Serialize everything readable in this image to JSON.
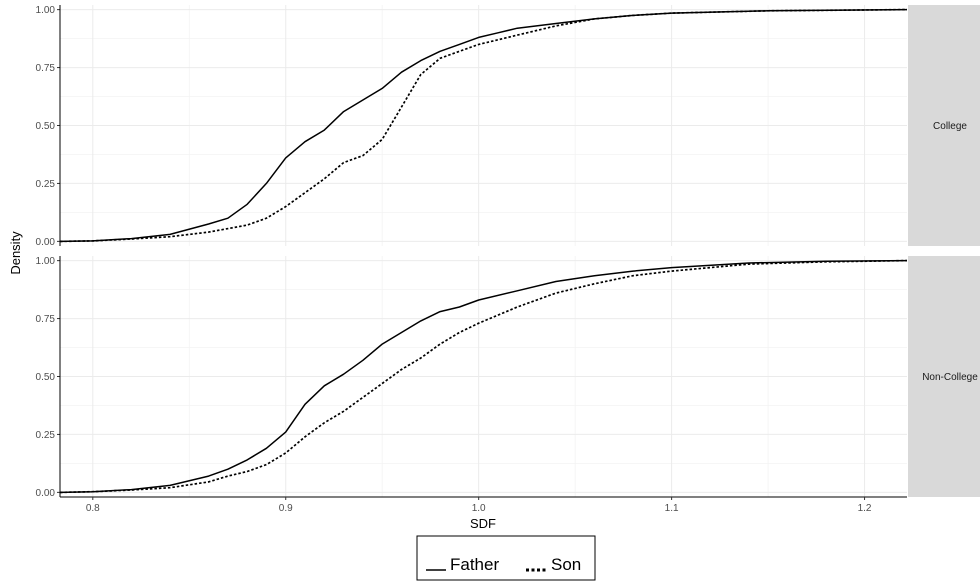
{
  "chart_data": {
    "type": "line",
    "xlabel": "SDF",
    "ylabel": "Density",
    "xlim": [
      0.783,
      1.222
    ],
    "ylim": [
      -0.02,
      1.02
    ],
    "x_ticks": [
      {
        "value": 0.8,
        "label": "0.8"
      },
      {
        "value": 0.9,
        "label": "0.9"
      },
      {
        "value": 1.0,
        "label": "1.0"
      },
      {
        "value": 1.1,
        "label": "1.1"
      },
      {
        "value": 1.2,
        "label": "1.2"
      }
    ],
    "y_ticks": [
      {
        "value": 0.0,
        "label": "0.00"
      },
      {
        "value": 0.25,
        "label": "0.25"
      },
      {
        "value": 0.5,
        "label": "0.50"
      },
      {
        "value": 0.75,
        "label": "0.75"
      },
      {
        "value": 1.0,
        "label": "1.00"
      }
    ],
    "grid": true,
    "legend_position": "bottom",
    "legend": [
      {
        "name": "Father",
        "linetype": "solid"
      },
      {
        "name": "Son",
        "linetype": "dotted"
      }
    ],
    "panels": [
      {
        "strip": "College",
        "series": [
          {
            "name": "Father",
            "points": [
              [
                0.783,
                0.0
              ],
              [
                0.8,
                0.002
              ],
              [
                0.82,
                0.012
              ],
              [
                0.84,
                0.03
              ],
              [
                0.86,
                0.075
              ],
              [
                0.87,
                0.1
              ],
              [
                0.88,
                0.16
              ],
              [
                0.89,
                0.25
              ],
              [
                0.9,
                0.36
              ],
              [
                0.91,
                0.43
              ],
              [
                0.92,
                0.48
              ],
              [
                0.93,
                0.56
              ],
              [
                0.94,
                0.61
              ],
              [
                0.95,
                0.66
              ],
              [
                0.96,
                0.73
              ],
              [
                0.97,
                0.78
              ],
              [
                0.98,
                0.82
              ],
              [
                0.99,
                0.85
              ],
              [
                1.0,
                0.88
              ],
              [
                1.01,
                0.9
              ],
              [
                1.02,
                0.92
              ],
              [
                1.04,
                0.94
              ],
              [
                1.06,
                0.96
              ],
              [
                1.08,
                0.975
              ],
              [
                1.1,
                0.985
              ],
              [
                1.15,
                0.995
              ],
              [
                1.222,
                1.0
              ]
            ]
          },
          {
            "name": "Son",
            "points": [
              [
                0.783,
                0.0
              ],
              [
                0.8,
                0.002
              ],
              [
                0.82,
                0.01
              ],
              [
                0.84,
                0.02
              ],
              [
                0.86,
                0.04
              ],
              [
                0.88,
                0.07
              ],
              [
                0.89,
                0.1
              ],
              [
                0.9,
                0.15
              ],
              [
                0.91,
                0.21
              ],
              [
                0.92,
                0.27
              ],
              [
                0.93,
                0.34
              ],
              [
                0.94,
                0.37
              ],
              [
                0.95,
                0.44
              ],
              [
                0.96,
                0.58
              ],
              [
                0.97,
                0.72
              ],
              [
                0.98,
                0.79
              ],
              [
                0.99,
                0.82
              ],
              [
                1.0,
                0.85
              ],
              [
                1.01,
                0.87
              ],
              [
                1.02,
                0.89
              ],
              [
                1.04,
                0.93
              ],
              [
                1.06,
                0.96
              ],
              [
                1.08,
                0.975
              ],
              [
                1.1,
                0.985
              ],
              [
                1.15,
                0.995
              ],
              [
                1.222,
                1.0
              ]
            ]
          }
        ]
      },
      {
        "strip": "Non-College",
        "series": [
          {
            "name": "Father",
            "points": [
              [
                0.783,
                0.0
              ],
              [
                0.8,
                0.003
              ],
              [
                0.82,
                0.012
              ],
              [
                0.84,
                0.03
              ],
              [
                0.86,
                0.07
              ],
              [
                0.87,
                0.1
              ],
              [
                0.88,
                0.14
              ],
              [
                0.89,
                0.19
              ],
              [
                0.9,
                0.26
              ],
              [
                0.91,
                0.38
              ],
              [
                0.92,
                0.46
              ],
              [
                0.93,
                0.51
              ],
              [
                0.94,
                0.57
              ],
              [
                0.95,
                0.64
              ],
              [
                0.96,
                0.69
              ],
              [
                0.97,
                0.74
              ],
              [
                0.98,
                0.78
              ],
              [
                0.99,
                0.8
              ],
              [
                1.0,
                0.83
              ],
              [
                1.02,
                0.87
              ],
              [
                1.04,
                0.91
              ],
              [
                1.06,
                0.935
              ],
              [
                1.08,
                0.955
              ],
              [
                1.1,
                0.97
              ],
              [
                1.14,
                0.99
              ],
              [
                1.18,
                0.997
              ],
              [
                1.222,
                1.0
              ]
            ]
          },
          {
            "name": "Son",
            "points": [
              [
                0.783,
                0.0
              ],
              [
                0.8,
                0.003
              ],
              [
                0.82,
                0.01
              ],
              [
                0.84,
                0.02
              ],
              [
                0.86,
                0.045
              ],
              [
                0.87,
                0.07
              ],
              [
                0.88,
                0.09
              ],
              [
                0.89,
                0.12
              ],
              [
                0.9,
                0.17
              ],
              [
                0.91,
                0.24
              ],
              [
                0.92,
                0.3
              ],
              [
                0.93,
                0.35
              ],
              [
                0.94,
                0.41
              ],
              [
                0.95,
                0.47
              ],
              [
                0.96,
                0.53
              ],
              [
                0.97,
                0.58
              ],
              [
                0.98,
                0.64
              ],
              [
                0.99,
                0.69
              ],
              [
                1.0,
                0.73
              ],
              [
                1.02,
                0.8
              ],
              [
                1.04,
                0.86
              ],
              [
                1.06,
                0.9
              ],
              [
                1.08,
                0.935
              ],
              [
                1.1,
                0.955
              ],
              [
                1.14,
                0.985
              ],
              [
                1.18,
                0.995
              ],
              [
                1.222,
                1.0
              ]
            ]
          }
        ]
      }
    ]
  }
}
